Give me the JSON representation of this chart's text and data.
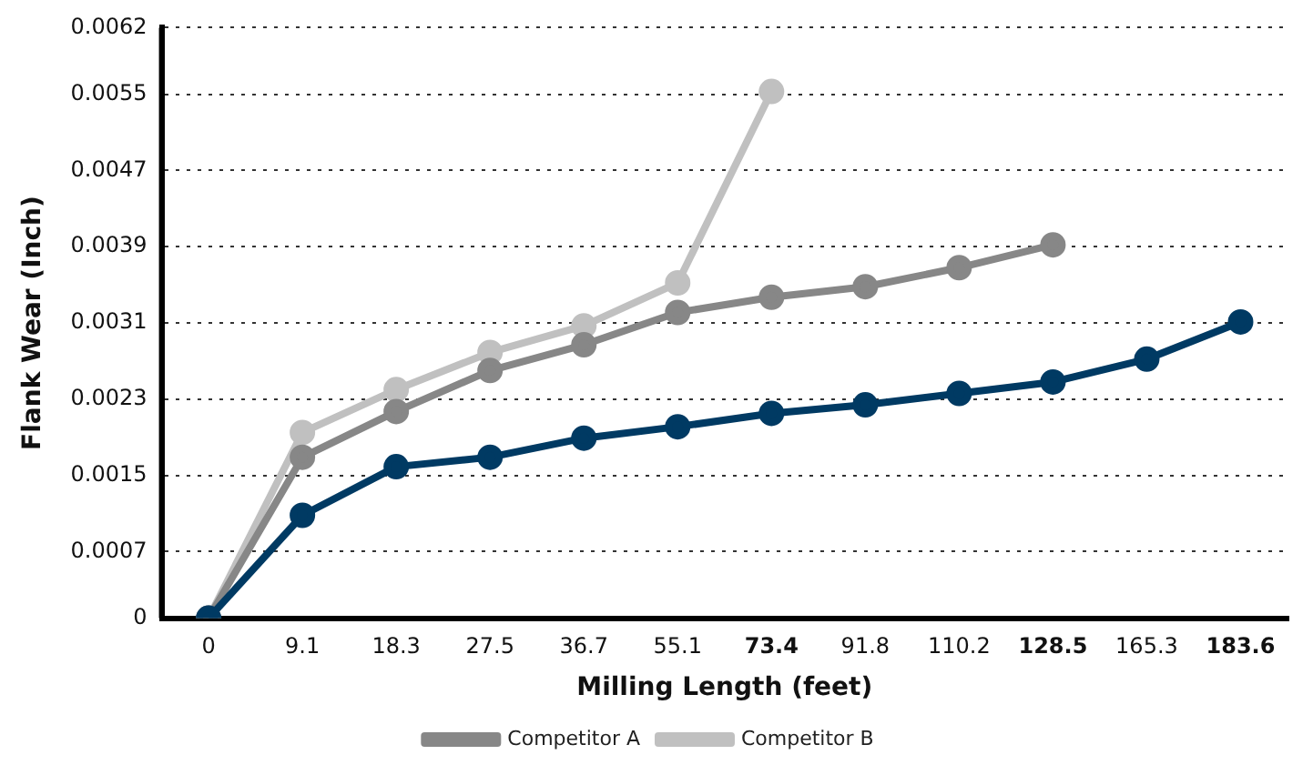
{
  "chart_data": {
    "type": "line",
    "xlabel": "Milling Length (feet)",
    "ylabel": "Flank Wear (Inch)",
    "categories": [
      "0",
      "9.1",
      "18.3",
      "27.5",
      "36.7",
      "55.1",
      "73.4",
      "91.8",
      "110.2",
      "128.5",
      "165.3",
      "183.6"
    ],
    "series": [
      {
        "color": "#003a63",
        "values": [
          0,
          0.00108,
          0.00159,
          0.00169,
          0.00189,
          0.00201,
          0.00215,
          0.00224,
          0.00236,
          0.00248,
          0.00272,
          0.00311
        ]
      },
      {
        "name": "Competitor A",
        "color": "#878787",
        "values": [
          0,
          0.00169,
          0.00217,
          0.0026,
          0.00287,
          0.00321,
          0.00337,
          0.00348,
          0.00368,
          0.00392,
          null,
          null
        ]
      },
      {
        "name": "Competitor B",
        "color": "#c0c0c0",
        "values": [
          0,
          0.00195,
          0.0024,
          0.00279,
          0.00307,
          0.00352,
          0.00553,
          null,
          null,
          null,
          null,
          null
        ]
      }
    ],
    "ylim": [
      0,
      0.0062
    ],
    "yticks": [
      0,
      0.0007,
      0.0015,
      0.0023,
      0.0031,
      0.0039,
      0.0047,
      0.0055,
      0.0062
    ],
    "grid": "y",
    "line_style": "solid",
    "marker": "circle",
    "legend": "bottom"
  }
}
